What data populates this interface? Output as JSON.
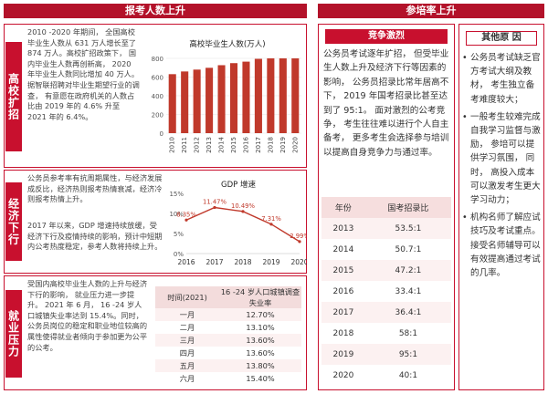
{
  "left_header": "报考人数上升",
  "right_header": "参培率上升",
  "sections": [
    {
      "side_label": "高校扩招",
      "text": "2010 -2020 年期间， 全国高校毕业生人数从 631 万人增长至了 874 万人。高校扩招政策下， 国内毕业生人数再创新高， 2020 年毕业生人数同比增加 40 万人。据智联招聘对毕业生期望行业的调查， 有意愿在政府机关的人数占比由 2019 年的 4.6% 升至 2021 年的 6.4%。"
    },
    {
      "side_label": "经济下行",
      "text_a": "公务员参考率有抗周期属性，与经济发展成反比，经济热则报考热情衰减，经济冷则报考热情上升。",
      "text_b": "2017 年以来，GDP 增速持续放缓，受经济下行及疫情持续的影响，预计中短期内公考热度稳定，参考人数将持续上升。"
    },
    {
      "side_label": "就业压力",
      "text": "受国内高校毕业生人数的上升与经济下行的影响， 就业压力进一步提升。 2021 年 6 月， 16 -24 岁人口城镇失业率达到 15.4%。同时， 公务员岗位的稳定和职业地位较高的属性使得就业者倾向于参加更为公平的公考。"
    }
  ],
  "chart_data": [
    {
      "type": "bar",
      "title": "高校毕业生人数(万人)",
      "categories": [
        "2010",
        "2011",
        "2012",
        "2013",
        "2014",
        "2015",
        "2016",
        "2017",
        "2018",
        "2019",
        "2020"
      ],
      "values": [
        631,
        660,
        680,
        699,
        727,
        749,
        765,
        795,
        820,
        834,
        874
      ],
      "ylim": [
        0,
        800
      ],
      "yticks": [
        "0",
        "200",
        "400",
        "600",
        "800"
      ],
      "color": "#c0392b"
    },
    {
      "type": "line",
      "title": "GDP 增速",
      "x": [
        "2016",
        "2017",
        "2018",
        "2019",
        "2020"
      ],
      "values": [
        8.35,
        11.47,
        10.49,
        7.31,
        2.99
      ],
      "labels": [
        "8.35%",
        "11.47%",
        "10.49%",
        "7.31%",
        "2.99%"
      ],
      "ylim": [
        0,
        15
      ],
      "yticks": [
        "0%",
        "5%",
        "10%",
        "15%"
      ],
      "color": "#c0392b"
    }
  ],
  "unemployment_table": {
    "headers": [
      "时间(2021)",
      "16 -24 岁人口城镇调查失业率"
    ],
    "rows": [
      [
        "一月",
        "12.70%"
      ],
      [
        "二月",
        "13.10%"
      ],
      [
        "三月",
        "13.60%"
      ],
      [
        "四月",
        "13.60%"
      ],
      [
        "五月",
        "13.80%"
      ],
      [
        "六月",
        "15.40%"
      ]
    ]
  },
  "right": {
    "competition_header": "竞争激烈",
    "competition_text": "公务员考试逐年扩招， 但受毕业生人数上升及经济下行等因素的影响， 公务员招录比常年居高不下， 2019 年国考招录比甚至达到了 95:1。 面对激烈的公考竞争， 考生往往难以进行个人自主备考， 更多考生会选择参与培训以提高自身竞争力与通过率。",
    "ratio_table": {
      "headers": [
        "年份",
        "国考招录比"
      ],
      "rows": [
        [
          "2013",
          "53.5:1"
        ],
        [
          "2014",
          "50.7:1"
        ],
        [
          "2015",
          "47.2:1"
        ],
        [
          "2016",
          "33.4:1"
        ],
        [
          "2017",
          "36.4:1"
        ],
        [
          "2018",
          "58:1"
        ],
        [
          "2019",
          "95:1"
        ],
        [
          "2020",
          "40:1"
        ]
      ]
    },
    "other_header": "其他原 因",
    "other_items": [
      "公务员考试缺乏官方考试大纲及教材， 考生独立备考难度较大；",
      "一般考生较难完成自我学习监督与激励， 参培可以提供学习氛围， 同时， 高投入成本可以激发考生更大学习动力；",
      "机构名师了解应试技巧及考试重点。 接受名师辅导可以有效提高通过考试的几率。"
    ]
  }
}
